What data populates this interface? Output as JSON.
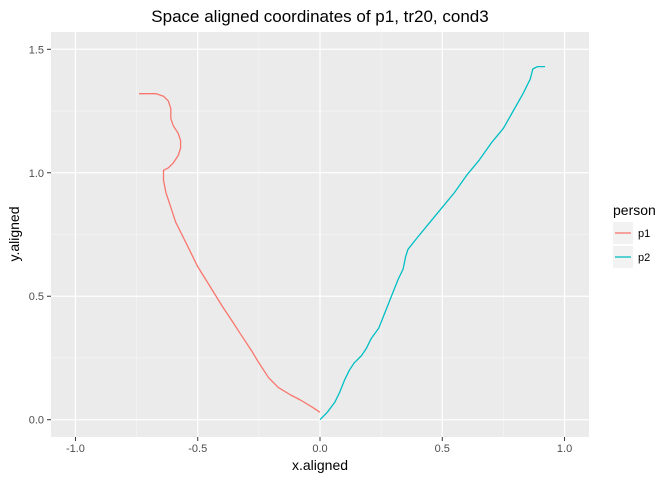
{
  "chart_data": {
    "type": "line",
    "title": "Space aligned coordinates of p1, tr20, cond3",
    "xlabel": "x.aligned",
    "ylabel": "y.aligned",
    "xlim": [
      -1.1,
      1.1
    ],
    "ylim": [
      -0.07,
      1.57
    ],
    "x_ticks": [
      -1.0,
      -0.5,
      0.0,
      0.5,
      1.0
    ],
    "x_tick_labels": [
      "-1.0",
      "-0.5",
      "0.0",
      "0.5",
      "1.0"
    ],
    "y_ticks": [
      0.0,
      0.5,
      1.0,
      1.5
    ],
    "y_tick_labels": [
      "0.0",
      "0.5",
      "1.0",
      "1.5"
    ],
    "grid": true,
    "legend": {
      "title": "person",
      "position": "right"
    },
    "series": [
      {
        "name": "p1",
        "color": "#f8766d",
        "points": [
          [
            0.0,
            0.03
          ],
          [
            -0.03,
            0.05
          ],
          [
            -0.08,
            0.08
          ],
          [
            -0.12,
            0.1
          ],
          [
            -0.17,
            0.13
          ],
          [
            -0.21,
            0.17
          ],
          [
            -0.25,
            0.23
          ],
          [
            -0.28,
            0.28
          ],
          [
            -0.32,
            0.34
          ],
          [
            -0.36,
            0.4
          ],
          [
            -0.4,
            0.46
          ],
          [
            -0.45,
            0.54
          ],
          [
            -0.5,
            0.62
          ],
          [
            -0.53,
            0.68
          ],
          [
            -0.56,
            0.74
          ],
          [
            -0.59,
            0.8
          ],
          [
            -0.61,
            0.86
          ],
          [
            -0.63,
            0.92
          ],
          [
            -0.64,
            0.97
          ],
          [
            -0.64,
            1.01
          ],
          [
            -0.62,
            1.02
          ],
          [
            -0.6,
            1.04
          ],
          [
            -0.58,
            1.07
          ],
          [
            -0.57,
            1.1
          ],
          [
            -0.57,
            1.13
          ],
          [
            -0.58,
            1.16
          ],
          [
            -0.6,
            1.19
          ],
          [
            -0.61,
            1.22
          ],
          [
            -0.61,
            1.26
          ],
          [
            -0.62,
            1.29
          ],
          [
            -0.64,
            1.31
          ],
          [
            -0.67,
            1.32
          ],
          [
            -0.71,
            1.32
          ],
          [
            -0.74,
            1.32
          ]
        ]
      },
      {
        "name": "p2",
        "color": "#00bfc4",
        "points": [
          [
            0.0,
            0.0
          ],
          [
            0.03,
            0.03
          ],
          [
            0.06,
            0.07
          ],
          [
            0.08,
            0.11
          ],
          [
            0.1,
            0.16
          ],
          [
            0.12,
            0.2
          ],
          [
            0.14,
            0.23
          ],
          [
            0.17,
            0.26
          ],
          [
            0.19,
            0.29
          ],
          [
            0.21,
            0.33
          ],
          [
            0.24,
            0.37
          ],
          [
            0.26,
            0.42
          ],
          [
            0.28,
            0.47
          ],
          [
            0.3,
            0.52
          ],
          [
            0.32,
            0.57
          ],
          [
            0.34,
            0.61
          ],
          [
            0.35,
            0.66
          ],
          [
            0.36,
            0.69
          ],
          [
            0.4,
            0.74
          ],
          [
            0.45,
            0.8
          ],
          [
            0.5,
            0.86
          ],
          [
            0.55,
            0.92
          ],
          [
            0.6,
            0.99
          ],
          [
            0.65,
            1.05
          ],
          [
            0.7,
            1.12
          ],
          [
            0.75,
            1.18
          ],
          [
            0.79,
            1.25
          ],
          [
            0.83,
            1.32
          ],
          [
            0.86,
            1.38
          ],
          [
            0.87,
            1.42
          ],
          [
            0.89,
            1.43
          ],
          [
            0.92,
            1.43
          ]
        ]
      }
    ]
  }
}
